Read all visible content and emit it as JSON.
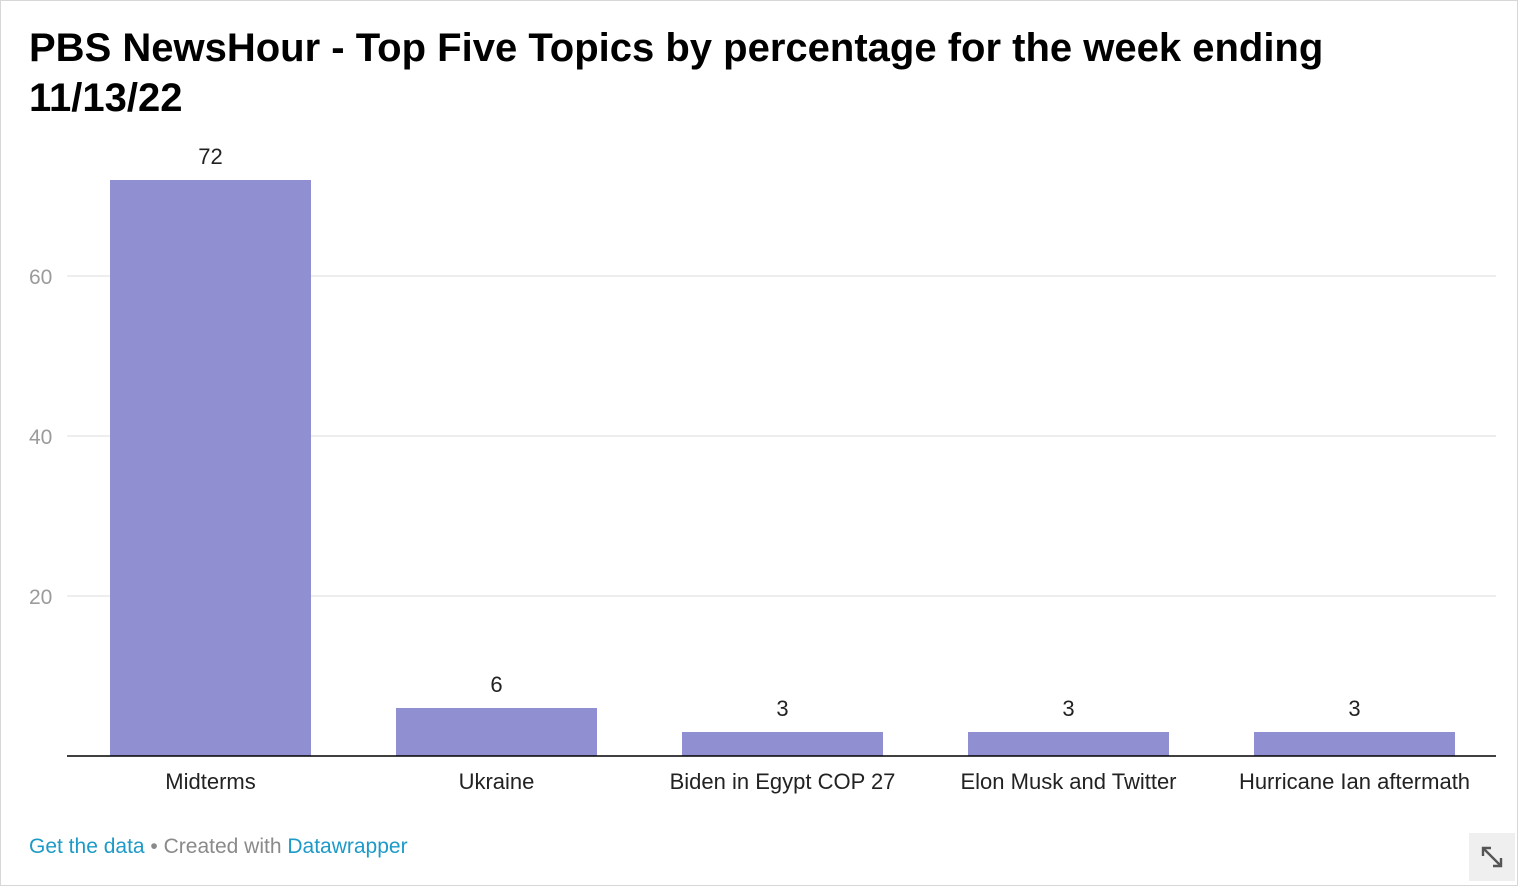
{
  "chart_data": {
    "type": "bar",
    "title": "PBS NewsHour - Top Five Topics by percentage for the week ending 11/13/22",
    "categories": [
      "Midterms",
      "Ukraine",
      "Biden in Egypt COP 27",
      "Elon Musk and Twitter",
      "Hurricane Ian aftermath"
    ],
    "values": [
      72,
      6,
      3,
      3,
      3
    ],
    "value_labels": [
      "72",
      "6",
      "3",
      "3",
      "3"
    ],
    "yticks": [
      20,
      40,
      60
    ],
    "ytick_labels": [
      "20",
      "40",
      "60"
    ],
    "ylim": [
      0,
      72
    ],
    "grid": true,
    "bar_color": "#8f8fd1",
    "xlabel": "",
    "ylabel": ""
  },
  "footer": {
    "get_data": "Get the data",
    "separator": " • ",
    "created_with": "Created with ",
    "tool": "Datawrapper"
  },
  "colors": {
    "link": "#1d9ac7",
    "grid": "#e4e4e4",
    "axis": "#000000",
    "tick_text": "#9b9b9b"
  },
  "icons": {
    "expand": "expand-arrows-icon"
  }
}
